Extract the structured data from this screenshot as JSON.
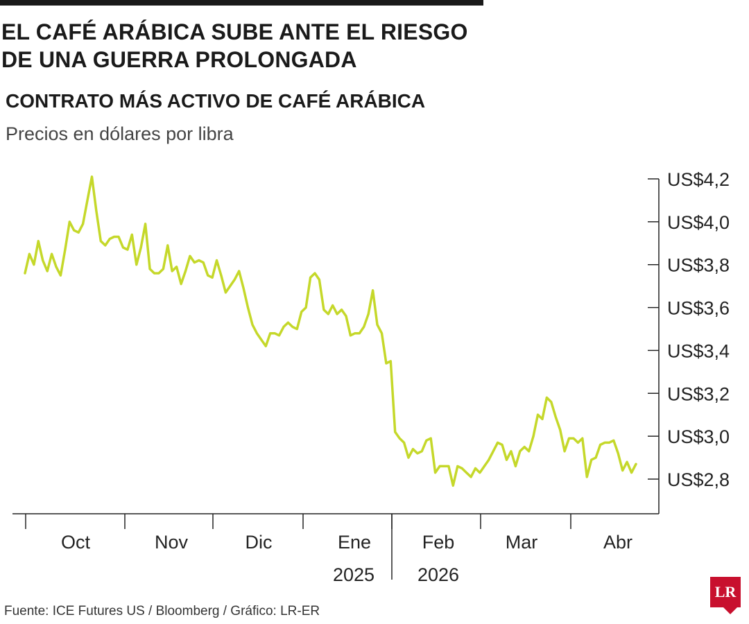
{
  "headline": "EL CAFÉ ARÁBICA SUBE ANTE EL RIESGO DE UNA GUERRA PROLONGADA",
  "source": "Fuente: ICE Futures US / Bloomberg / Gráfico: LR-ER",
  "logo_text": "LR",
  "colors": {
    "line": "#c5d82a",
    "axis": "#222222",
    "logo": "#c8102e"
  },
  "chart_data": {
    "type": "line",
    "title": "CONTRATO MÁS ACTIVO DE CAFÉ ARÁBICA",
    "subtitle": "Precios en dólares por libra",
    "ylim": [
      2.6,
      4.2
    ],
    "y_ticks": [
      4.2,
      4.0,
      3.8,
      3.6,
      3.4,
      3.2,
      3.0,
      2.8
    ],
    "y_tick_labels": [
      "US$4,2",
      "US$4,0",
      "US$3,8",
      "US$3,6",
      "US$3,4",
      "US$3,2",
      "US$3,0",
      "US$2,8"
    ],
    "y_axis_side": "right",
    "grid": false,
    "month_labels": [
      "Oct",
      "Nov",
      "Dic",
      "Ene",
      "Feb",
      "Mar",
      "Abr"
    ],
    "year_labels": [
      "2025",
      "2026"
    ],
    "series": [
      {
        "values": [
          3.76,
          3.85,
          3.8,
          3.91,
          3.82,
          3.77,
          3.85,
          3.79,
          3.75,
          3.87,
          4.0,
          3.96,
          3.95,
          3.99,
          4.1,
          4.21,
          4.05,
          3.91,
          3.89,
          3.92,
          3.93,
          3.93,
          3.88,
          3.87,
          3.94,
          3.8,
          3.88,
          3.99,
          3.78,
          3.76,
          3.76,
          3.78,
          3.89,
          3.77,
          3.79,
          3.71,
          3.77,
          3.84,
          3.81,
          3.82,
          3.81,
          3.75,
          3.74,
          3.82,
          3.75,
          3.67,
          3.7,
          3.73,
          3.77,
          3.69,
          3.6,
          3.52,
          3.48,
          3.45,
          3.42,
          3.48,
          3.48,
          3.47,
          3.51,
          3.53,
          3.51,
          3.5,
          3.58,
          3.6,
          3.74,
          3.76,
          3.73,
          3.59,
          3.57,
          3.61,
          3.57,
          3.59,
          3.56,
          3.47,
          3.48,
          3.48,
          3.51,
          3.57,
          3.68,
          3.52,
          3.48,
          3.34,
          3.35,
          3.02,
          2.99,
          2.97,
          2.9,
          2.94,
          2.92,
          2.93,
          2.98,
          2.99,
          2.83,
          2.86,
          2.86,
          2.86,
          2.77,
          2.86,
          2.85,
          2.83,
          2.81,
          2.85,
          2.83,
          2.86,
          2.89,
          2.93,
          2.97,
          2.96,
          2.89,
          2.93,
          2.86,
          2.93,
          2.95,
          2.93,
          3.0,
          3.1,
          3.08,
          3.18,
          3.16,
          3.09,
          3.03,
          2.93,
          2.99,
          2.99,
          2.97,
          2.99,
          2.81,
          2.89,
          2.9,
          2.96,
          2.97,
          2.97,
          2.98,
          2.92,
          2.84,
          2.88,
          2.83,
          2.87
        ]
      }
    ]
  }
}
